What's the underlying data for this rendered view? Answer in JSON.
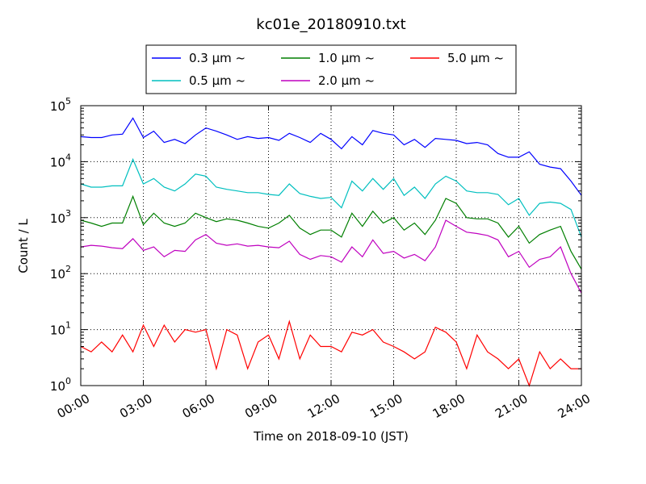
{
  "chart_data": {
    "type": "line",
    "title": "kc01e_20180910.txt",
    "xlabel": "Time on 2018-09-10 (JST)",
    "ylabel": "Count / L",
    "yscale": "log",
    "ylim": [
      1,
      100000
    ],
    "xlim": [
      "00:00",
      "24:00"
    ],
    "x_tick_labels": [
      "00:00",
      "03:00",
      "06:00",
      "09:00",
      "12:00",
      "15:00",
      "18:00",
      "21:00",
      "24:00"
    ],
    "y_ticks": [
      1,
      10,
      100,
      1000,
      10000,
      100000
    ],
    "y_tick_labels": [
      {
        "base": "10",
        "exp": "0"
      },
      {
        "base": "10",
        "exp": "1"
      },
      {
        "base": "10",
        "exp": "2"
      },
      {
        "base": "10",
        "exp": "3"
      },
      {
        "base": "10",
        "exp": "4"
      },
      {
        "base": "10",
        "exp": "5"
      }
    ],
    "grid": true,
    "legend_position": "top-center",
    "x_hours": [
      0.0,
      0.5,
      1.0,
      1.5,
      2.0,
      2.5,
      3.0,
      3.5,
      4.0,
      4.5,
      5.0,
      5.5,
      6.0,
      6.5,
      7.0,
      7.5,
      8.0,
      8.5,
      9.0,
      9.5,
      10.0,
      10.5,
      11.0,
      11.5,
      12.0,
      12.5,
      13.0,
      13.5,
      14.0,
      14.5,
      15.0,
      15.5,
      16.0,
      16.5,
      17.0,
      17.5,
      18.0,
      18.5,
      19.0,
      19.5,
      20.0,
      20.5,
      21.0,
      21.5,
      22.0,
      22.5,
      23.0,
      23.5,
      24.0
    ],
    "series": [
      {
        "name": "0.3 μm ~",
        "color": "#0000ff",
        "values": [
          28000,
          27000,
          27000,
          30000,
          31000,
          60000,
          27000,
          35000,
          22000,
          25000,
          21000,
          30000,
          40000,
          35000,
          30000,
          25000,
          28000,
          26000,
          27000,
          24000,
          32000,
          27000,
          22000,
          32000,
          25000,
          17000,
          28000,
          20000,
          36000,
          32000,
          30000,
          20000,
          25000,
          18000,
          26000,
          25000,
          24000,
          21000,
          22000,
          20000,
          14000,
          12000,
          12000,
          15000,
          9000,
          8000,
          7500,
          4500,
          2500
        ]
      },
      {
        "name": "0.5 μm ~",
        "color": "#00bfbf",
        "values": [
          4000,
          3500,
          3500,
          3700,
          3700,
          11000,
          4000,
          5000,
          3500,
          3000,
          4000,
          6000,
          5500,
          3500,
          3200,
          3000,
          2800,
          2800,
          2600,
          2500,
          4000,
          2700,
          2400,
          2200,
          2300,
          1500,
          4500,
          3000,
          5000,
          3200,
          5000,
          2500,
          3500,
          2200,
          4000,
          5500,
          4500,
          3000,
          2800,
          2800,
          2600,
          1700,
          2200,
          1100,
          1800,
          1900,
          1800,
          1400,
          450
        ]
      },
      {
        "name": "1.0 μm ~",
        "color": "#007f00",
        "values": [
          900,
          800,
          700,
          800,
          800,
          2400,
          750,
          1200,
          800,
          700,
          800,
          1200,
          1000,
          850,
          950,
          900,
          800,
          700,
          650,
          800,
          1100,
          650,
          500,
          600,
          600,
          450,
          1200,
          700,
          1300,
          800,
          1000,
          600,
          800,
          500,
          900,
          2200,
          1800,
          1000,
          950,
          950,
          800,
          450,
          700,
          350,
          500,
          600,
          700,
          250,
          120
        ]
      },
      {
        "name": "2.0 μm ~",
        "color": "#bf00bf",
        "values": [
          300,
          320,
          310,
          290,
          280,
          420,
          260,
          300,
          200,
          260,
          250,
          400,
          500,
          350,
          320,
          340,
          310,
          320,
          300,
          290,
          380,
          220,
          180,
          210,
          200,
          160,
          300,
          200,
          400,
          230,
          250,
          190,
          220,
          170,
          300,
          900,
          700,
          550,
          520,
          480,
          400,
          200,
          250,
          130,
          180,
          200,
          300,
          100,
          45
        ]
      },
      {
        "name": "5.0 μm ~",
        "color": "#ff0000",
        "values": [
          5,
          4,
          6,
          4,
          8,
          4,
          12,
          5,
          12,
          6,
          10,
          9,
          10,
          2,
          10,
          8,
          2,
          6,
          8,
          3,
          14,
          3,
          8,
          5,
          5,
          4,
          9,
          8,
          10,
          6,
          5,
          4,
          3,
          4,
          11,
          9,
          6,
          2,
          8,
          4,
          3,
          2,
          3,
          1,
          4,
          2,
          3,
          2,
          2
        ]
      }
    ]
  }
}
